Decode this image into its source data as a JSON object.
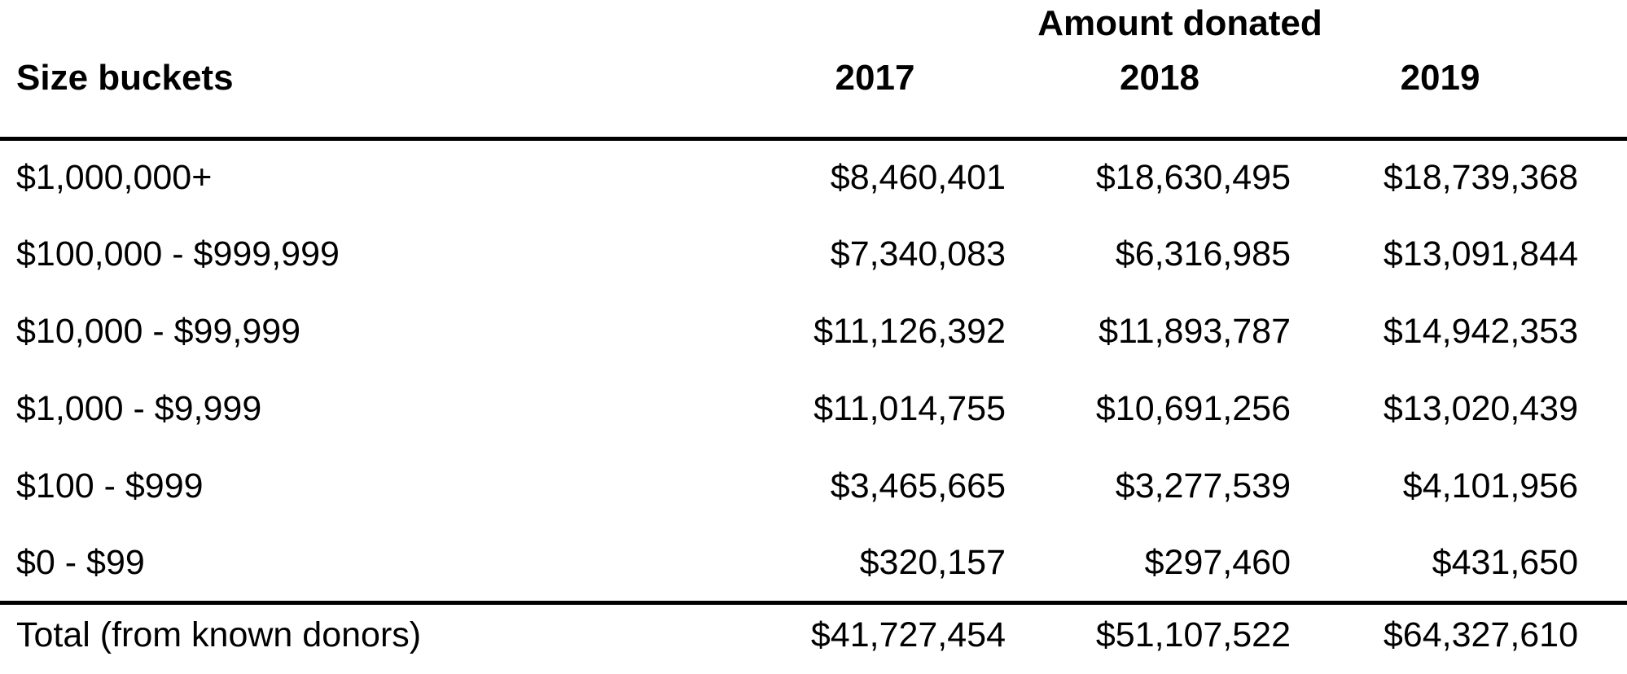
{
  "table": {
    "group_header": "Amount donated",
    "row_header": "Size buckets",
    "years": [
      "2017",
      "2018",
      "2019"
    ],
    "rows": [
      {
        "bucket": "$1,000,000+",
        "values": [
          "$8,460,401",
          "$18,630,495",
          "$18,739,368"
        ]
      },
      {
        "bucket": "$100,000 - $999,999",
        "values": [
          "$7,340,083",
          "$6,316,985",
          "$13,091,844"
        ]
      },
      {
        "bucket": "$10,000 - $99,999",
        "values": [
          "$11,126,392",
          "$11,893,787",
          "$14,942,353"
        ]
      },
      {
        "bucket": "$1,000 - $9,999",
        "values": [
          "$11,014,755",
          "$10,691,256",
          "$13,020,439"
        ]
      },
      {
        "bucket": "$100 - $999",
        "values": [
          "$3,465,665",
          "$3,277,539",
          "$4,101,956"
        ]
      },
      {
        "bucket": "$0 - $99",
        "values": [
          "$320,157",
          "$297,460",
          "$431,650"
        ]
      }
    ],
    "total": {
      "label": "Total (from known donors)",
      "values": [
        "$41,727,454",
        "$51,107,522",
        "$64,327,610"
      ]
    }
  },
  "colors": {
    "text": "#000000",
    "background": "#ffffff",
    "rule": "#000000"
  },
  "chart_data": {
    "type": "table",
    "title": "Amount donated",
    "row_dimension": "Size buckets",
    "categories": [
      "$1,000,000+",
      "$100,000 - $999,999",
      "$10,000 - $99,999",
      "$1,000 - $9,999",
      "$100 - $999",
      "$0 - $99",
      "Total (from known donors)"
    ],
    "series": [
      {
        "name": "2017",
        "values": [
          8460401,
          7340083,
          11126392,
          11014755,
          3465665,
          320157,
          41727454
        ]
      },
      {
        "name": "2018",
        "values": [
          18630495,
          6316985,
          11893787,
          10691256,
          3277539,
          297460,
          51107522
        ]
      },
      {
        "name": "2019",
        "values": [
          18739368,
          13091844,
          14942353,
          13020439,
          4101956,
          431650,
          64327610
        ]
      }
    ]
  }
}
